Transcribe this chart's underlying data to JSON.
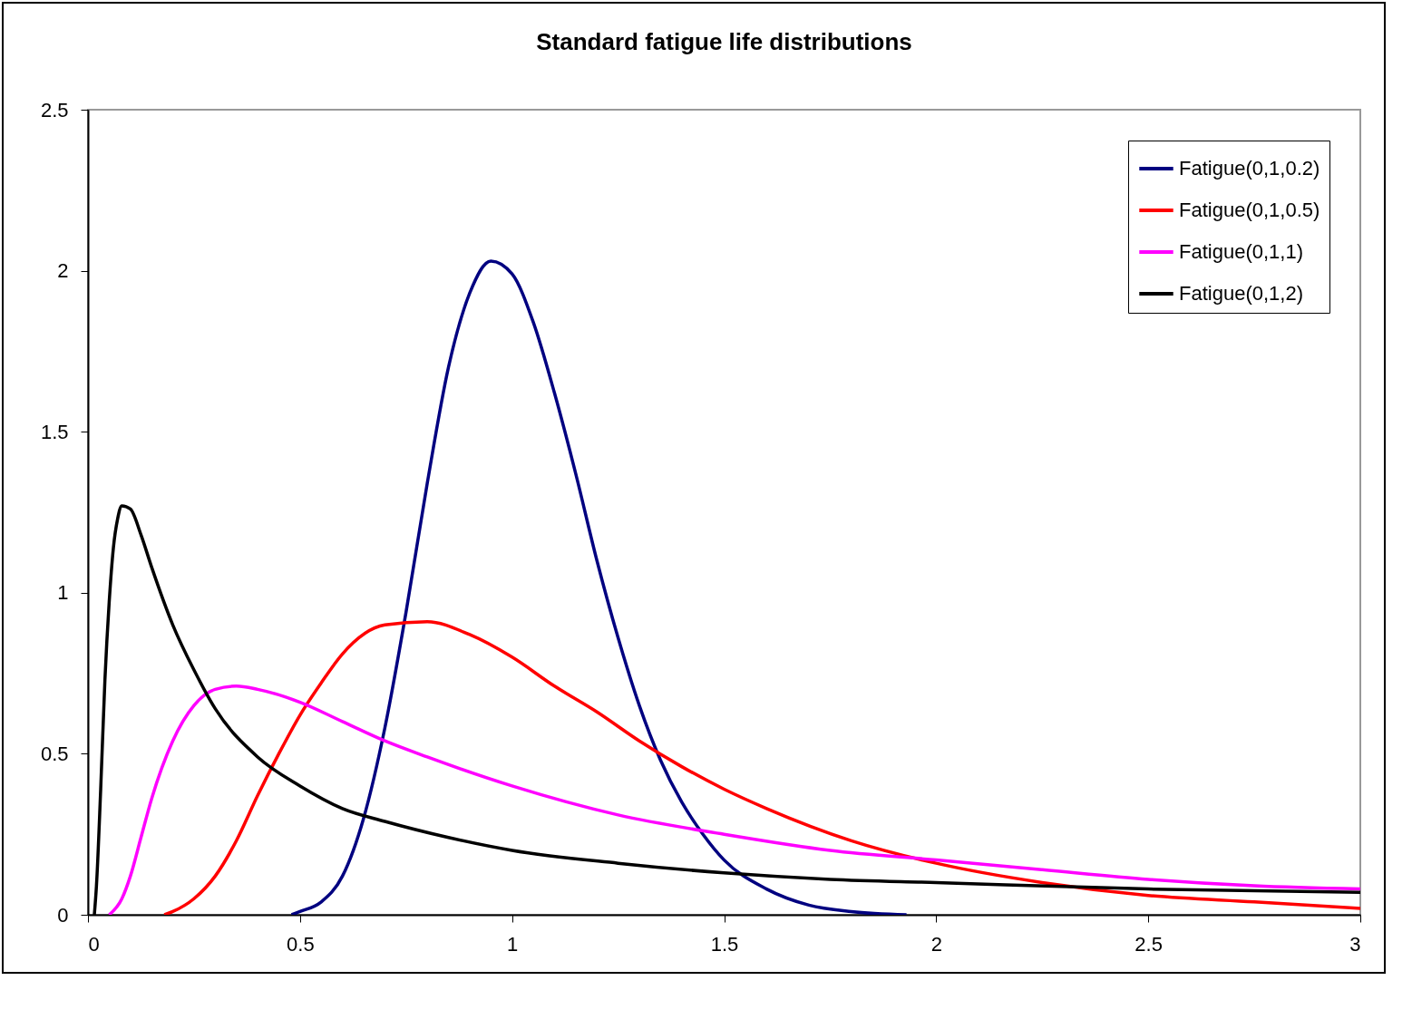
{
  "chart_data": {
    "type": "line",
    "title": "Standard fatigue life distributions",
    "xlim": [
      0,
      3
    ],
    "ylim": [
      0,
      2.5
    ],
    "xticks": [
      0,
      0.5,
      1,
      1.5,
      2,
      2.5,
      3
    ],
    "yticks": [
      0,
      0.5,
      1,
      1.5,
      2,
      2.5
    ],
    "legend": "top right",
    "series": [
      {
        "name": "Fatigue(0,1,0.2)",
        "color": "#000080",
        "x": [
          0.48,
          0.5,
          0.55,
          0.6,
          0.65,
          0.7,
          0.75,
          0.8,
          0.85,
          0.9,
          0.95,
          1.0,
          1.05,
          1.1,
          1.15,
          1.2,
          1.25,
          1.3,
          1.35,
          1.4,
          1.45,
          1.5,
          1.6,
          1.7,
          1.8,
          1.93
        ],
        "values": [
          0.0,
          0.01,
          0.04,
          0.12,
          0.3,
          0.58,
          0.94,
          1.34,
          1.7,
          1.93,
          2.03,
          1.99,
          1.84,
          1.62,
          1.37,
          1.1,
          0.86,
          0.65,
          0.48,
          0.35,
          0.25,
          0.17,
          0.08,
          0.03,
          0.01,
          0.0
        ]
      },
      {
        "name": "Fatigue(0,1,0.5)",
        "color": "#ff0000",
        "x": [
          0.18,
          0.2,
          0.25,
          0.3,
          0.35,
          0.4,
          0.45,
          0.5,
          0.55,
          0.6,
          0.7,
          0.8,
          0.9,
          1.0,
          1.1,
          1.2,
          1.3,
          1.4,
          1.5,
          1.6,
          1.8,
          2.0,
          2.25,
          2.5,
          2.75,
          3.0
        ],
        "values": [
          0.0,
          0.01,
          0.05,
          0.12,
          0.23,
          0.37,
          0.5,
          0.62,
          0.72,
          0.81,
          0.9,
          0.91,
          0.87,
          0.8,
          0.71,
          0.63,
          0.54,
          0.46,
          0.39,
          0.33,
          0.23,
          0.16,
          0.1,
          0.06,
          0.04,
          0.02
        ]
      },
      {
        "name": "Fatigue(0,1,1)",
        "color": "#ff00ff",
        "x": [
          0.05,
          0.08,
          0.1,
          0.125,
          0.15,
          0.2,
          0.25,
          0.3,
          0.35,
          0.4,
          0.5,
          0.6,
          0.7,
          0.8,
          1.0,
          1.25,
          1.5,
          1.75,
          2.0,
          2.25,
          2.5,
          2.75,
          3.0
        ],
        "values": [
          0.0,
          0.05,
          0.12,
          0.24,
          0.36,
          0.54,
          0.65,
          0.7,
          0.71,
          0.7,
          0.66,
          0.6,
          0.54,
          0.49,
          0.4,
          0.31,
          0.25,
          0.2,
          0.17,
          0.14,
          0.11,
          0.09,
          0.08
        ]
      },
      {
        "name": "Fatigue(0,1,2)",
        "color": "#000000",
        "x": [
          0.015,
          0.02,
          0.03,
          0.04,
          0.05,
          0.06,
          0.07,
          0.08,
          0.1,
          0.125,
          0.15,
          0.2,
          0.25,
          0.3,
          0.4,
          0.5,
          0.6,
          0.7,
          0.85,
          1.0,
          1.25,
          1.5,
          1.75,
          2.0,
          2.5,
          3.0
        ],
        "values": [
          0.0,
          0.09,
          0.39,
          0.73,
          0.97,
          1.14,
          1.23,
          1.27,
          1.26,
          1.18,
          1.08,
          0.9,
          0.76,
          0.64,
          0.49,
          0.4,
          0.33,
          0.29,
          0.24,
          0.2,
          0.16,
          0.13,
          0.11,
          0.1,
          0.08,
          0.07
        ]
      }
    ]
  }
}
